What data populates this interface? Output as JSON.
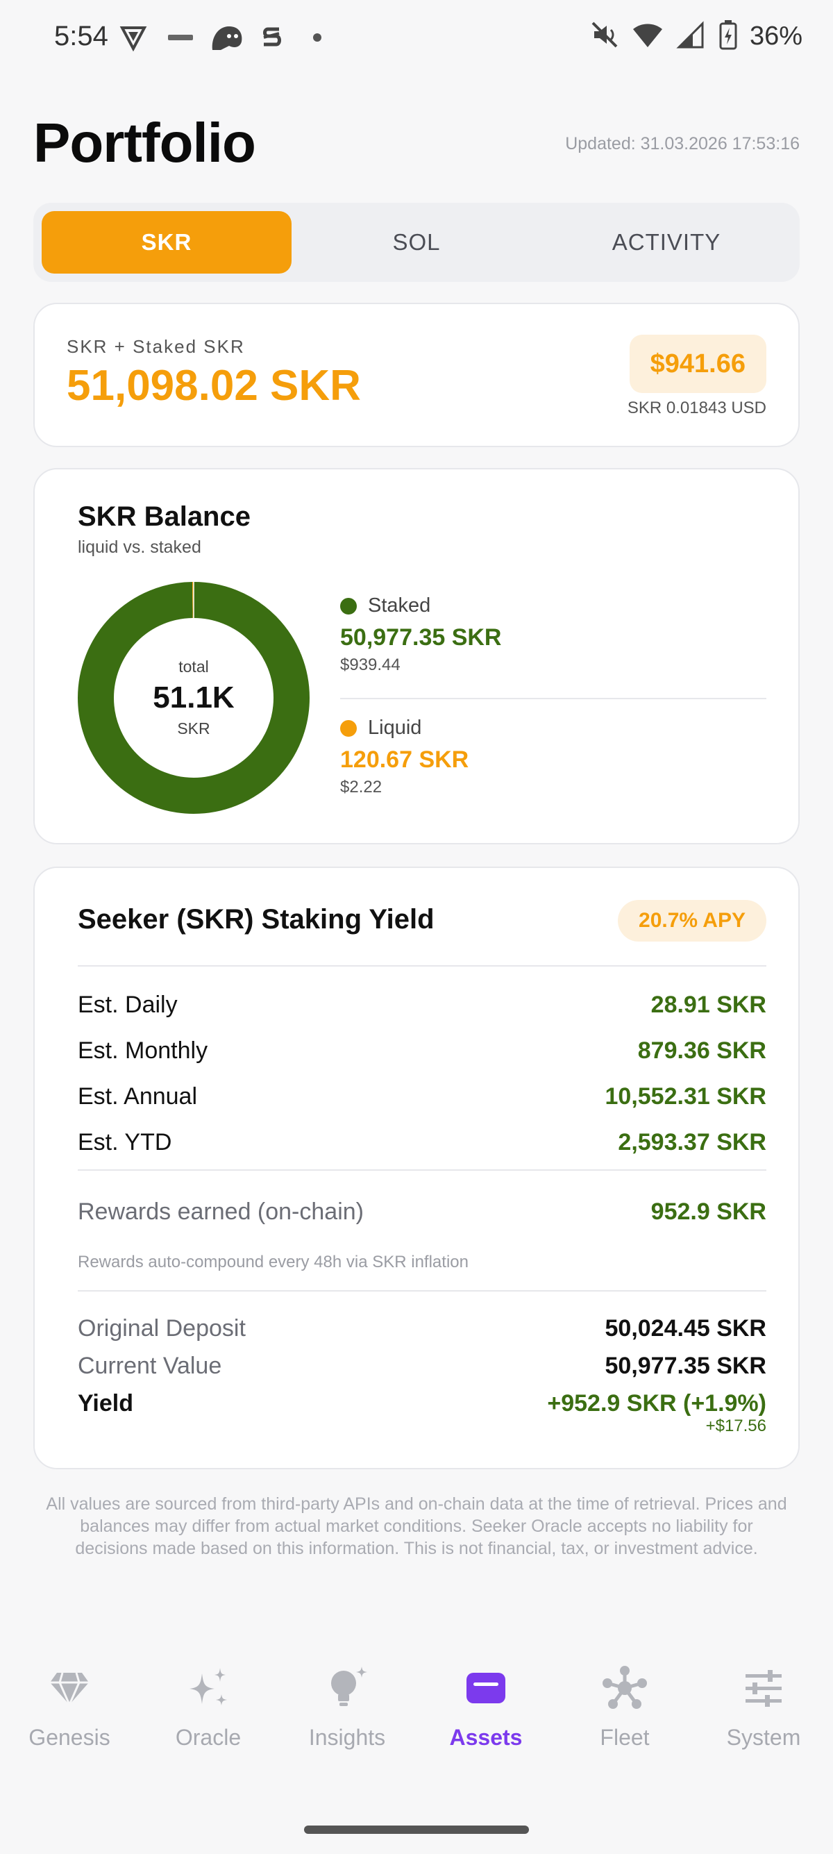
{
  "status_bar": {
    "time": "5:54",
    "battery": "36%",
    "icons": [
      "app-v-icon",
      "app-mob-icon",
      "ghost-icon",
      "s-logo-icon",
      "dot-icon",
      "mute-icon",
      "wifi-icon",
      "signal-icon",
      "battery-charging-icon"
    ]
  },
  "header": {
    "title": "Portfolio",
    "updated": "Updated: 31.03.2026 17:53:16"
  },
  "tabs": [
    {
      "label": "SKR",
      "active": true
    },
    {
      "label": "SOL",
      "active": false
    },
    {
      "label": "ACTIVITY",
      "active": false
    }
  ],
  "total": {
    "label": "SKR + Staked SKR",
    "value": "51,098.02 SKR",
    "usd": "$941.66",
    "rate": "SKR 0.01843 USD"
  },
  "balance": {
    "title": "SKR Balance",
    "subtitle": "liquid vs. staked",
    "center_small": "total",
    "center_value": "51.1K",
    "center_unit": "SKR",
    "staked": {
      "label": "Staked",
      "amount": "50,977.35 SKR",
      "usd": "$939.44",
      "color": "#3b6e12"
    },
    "liquid": {
      "label": "Liquid",
      "amount": "120.67 SKR",
      "usd": "$2.22",
      "color": "#f59e0b"
    }
  },
  "chart_data": {
    "type": "pie",
    "categories": [
      "Staked",
      "Liquid"
    ],
    "values": [
      50977.35,
      120.67
    ],
    "colors": [
      "#3b6e12",
      "#f59e0b"
    ],
    "title": "SKR Balance"
  },
  "yield": {
    "title": "Seeker (SKR) Staking Yield",
    "apy": "20.7% APY",
    "estimates": [
      {
        "label": "Est. Daily",
        "value": "28.91 SKR"
      },
      {
        "label": "Est. Monthly",
        "value": "879.36 SKR"
      },
      {
        "label": "Est. Annual",
        "value": "10,552.31 SKR"
      },
      {
        "label": "Est. YTD",
        "value": "2,593.37 SKR"
      }
    ],
    "rewards_label": "Rewards earned (on-chain)",
    "rewards_value": "952.9 SKR",
    "note": "Rewards auto-compound every 48h via SKR inflation",
    "deposit_label": "Original Deposit",
    "deposit_value": "50,024.45 SKR",
    "current_label": "Current Value",
    "current_value": "50,977.35 SKR",
    "yield_label": "Yield",
    "yield_value": "+952.9 SKR (+1.9%)",
    "yield_usd": "+$17.56"
  },
  "disclaimer": "All values are sourced from third-party APIs and on-chain data at the time of retrieval. Prices and balances may differ from actual market conditions. Seeker Oracle accepts no liability for decisions made based on this information. This is not financial, tax, or investment advice.",
  "nav": [
    {
      "label": "Genesis",
      "icon": "gem-icon",
      "active": false
    },
    {
      "label": "Oracle",
      "icon": "sparkle-icon",
      "active": false
    },
    {
      "label": "Insights",
      "icon": "lightbulb-icon",
      "active": false
    },
    {
      "label": "Assets",
      "icon": "wallet-icon",
      "active": true
    },
    {
      "label": "Fleet",
      "icon": "network-icon",
      "active": false
    },
    {
      "label": "System",
      "icon": "sliders-icon",
      "active": false
    }
  ],
  "colors": {
    "accent": "#f59e0b",
    "staked_green": "#3b6e12",
    "nav_active": "#7c3aed"
  }
}
